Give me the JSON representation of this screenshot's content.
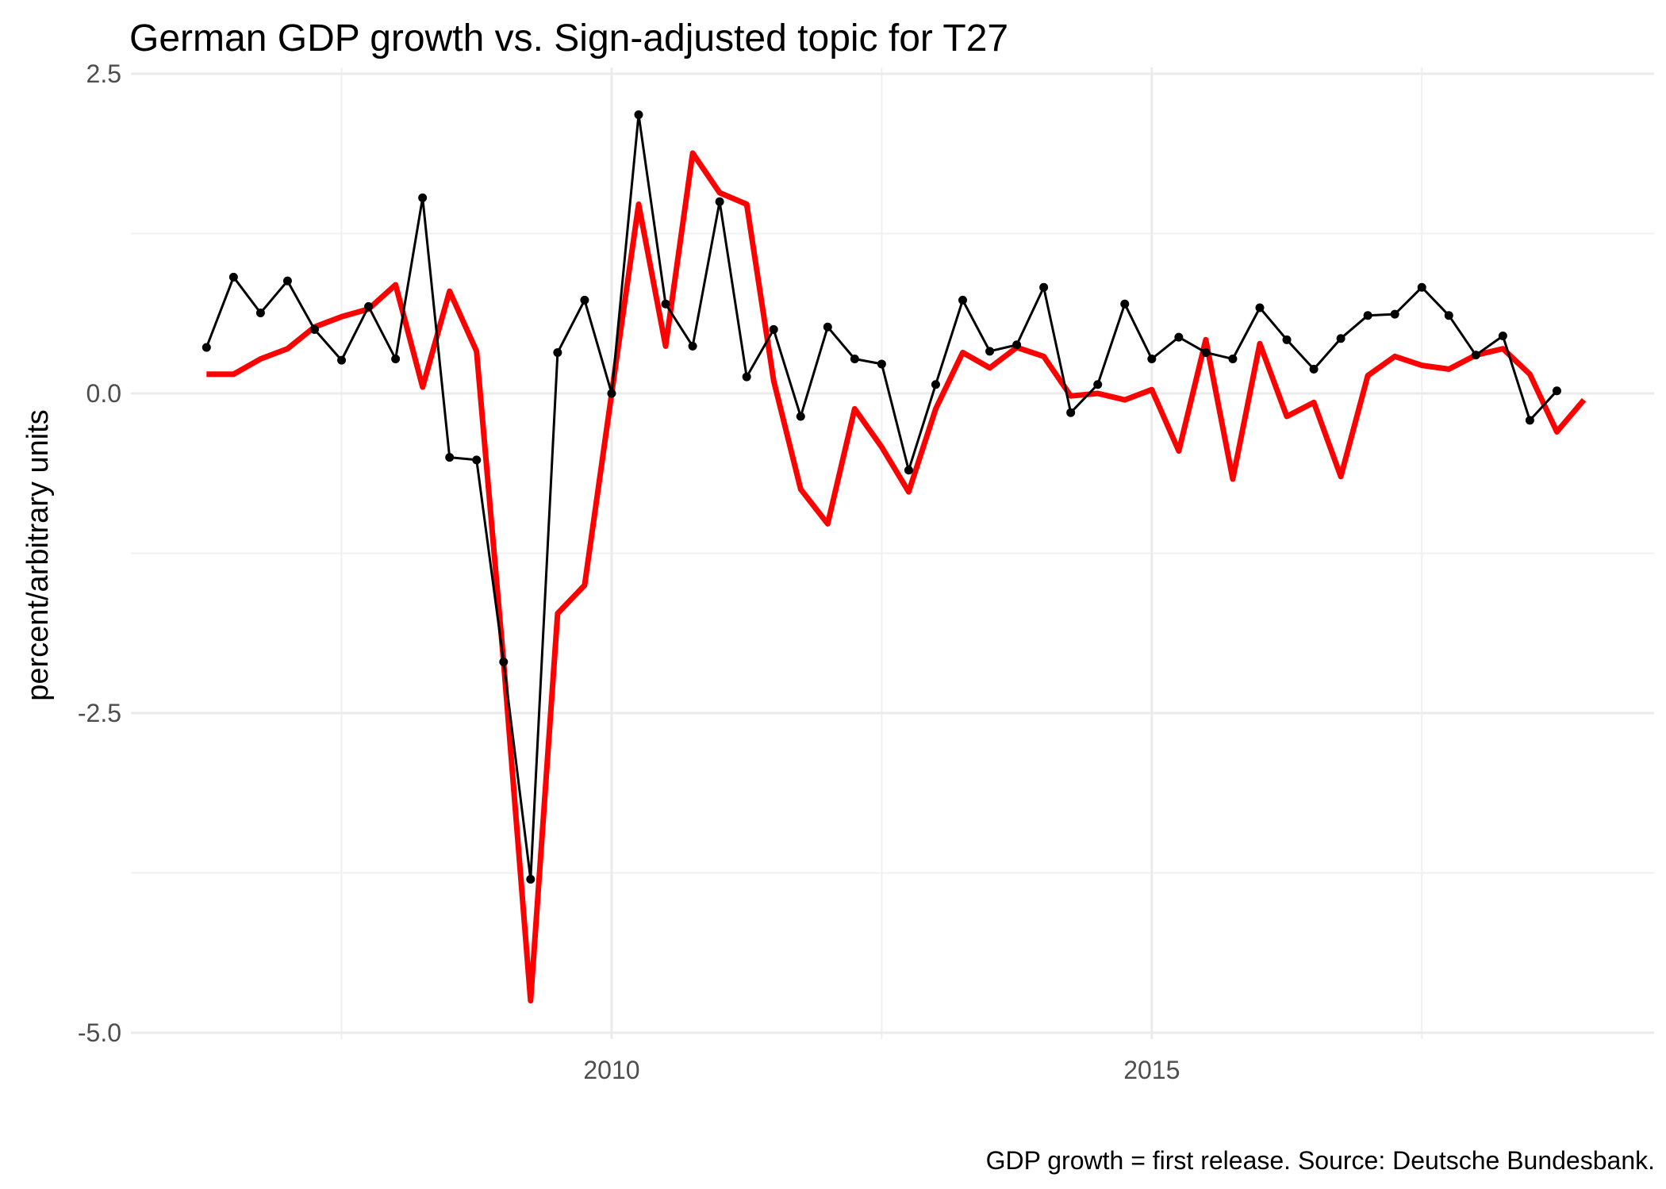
{
  "chart_data": {
    "type": "line",
    "title": "German GDP growth vs. Sign-adjusted topic for T27",
    "xlabel": "",
    "ylabel": "percent/arbitrary units",
    "caption": "GDP growth = first release. Source: Deutsche Bundesbank.",
    "xlim": [
      2005.55,
      2019.65
    ],
    "ylim": [
      -5.05,
      2.55
    ],
    "x_ticks": [
      {
        "value": 2010,
        "label": "2010"
      },
      {
        "value": 2015,
        "label": "2015"
      }
    ],
    "x_minor_ticks": [
      2007.5,
      2012.5,
      2017.5
    ],
    "y_ticks": [
      {
        "value": 2.5,
        "label": "2.5"
      },
      {
        "value": 0,
        "label": "0.0"
      },
      {
        "value": -2.5,
        "label": "-2.5"
      },
      {
        "value": -5,
        "label": "-5.0"
      }
    ],
    "y_minor_ticks": [
      1.25,
      -1.25,
      -3.75
    ],
    "grid": true,
    "legend": "none",
    "series": [
      {
        "color": "#ff0000",
        "style": "thick-line",
        "values": [
          [
            2006.25,
            0.15
          ],
          [
            2006.5,
            0.15
          ],
          [
            2006.75,
            0.27
          ],
          [
            2007.0,
            0.35
          ],
          [
            2007.25,
            0.52
          ],
          [
            2007.5,
            0.6
          ],
          [
            2007.75,
            0.66
          ],
          [
            2008.0,
            0.85
          ],
          [
            2008.25,
            0.05
          ],
          [
            2008.5,
            0.8
          ],
          [
            2008.75,
            0.33
          ],
          [
            2009.0,
            -2.1
          ],
          [
            2009.25,
            -4.75
          ],
          [
            2009.5,
            -1.72
          ],
          [
            2009.75,
            -1.5
          ],
          [
            2010.0,
            0.0
          ],
          [
            2010.25,
            1.48
          ],
          [
            2010.5,
            0.37
          ],
          [
            2010.75,
            1.88
          ],
          [
            2011.0,
            1.57
          ],
          [
            2011.25,
            1.48
          ],
          [
            2011.5,
            0.1
          ],
          [
            2011.75,
            -0.75
          ],
          [
            2012.0,
            -1.02
          ],
          [
            2012.25,
            -0.12
          ],
          [
            2012.5,
            -0.42
          ],
          [
            2012.75,
            -0.77
          ],
          [
            2013.0,
            -0.12
          ],
          [
            2013.25,
            0.32
          ],
          [
            2013.5,
            0.2
          ],
          [
            2013.75,
            0.36
          ],
          [
            2014.0,
            0.29
          ],
          [
            2014.25,
            -0.02
          ],
          [
            2014.5,
            0.0
          ],
          [
            2014.75,
            -0.05
          ],
          [
            2015.0,
            0.03
          ],
          [
            2015.25,
            -0.45
          ],
          [
            2015.5,
            0.42
          ],
          [
            2015.75,
            -0.67
          ],
          [
            2016.0,
            0.39
          ],
          [
            2016.25,
            -0.18
          ],
          [
            2016.5,
            -0.07
          ],
          [
            2016.75,
            -0.65
          ],
          [
            2017.0,
            0.14
          ],
          [
            2017.25,
            0.29
          ],
          [
            2017.5,
            0.22
          ],
          [
            2017.75,
            0.19
          ],
          [
            2018.0,
            0.3
          ],
          [
            2018.25,
            0.35
          ],
          [
            2018.5,
            0.15
          ],
          [
            2018.75,
            -0.3
          ],
          [
            2019.0,
            -0.05
          ]
        ]
      },
      {
        "color": "#000000",
        "style": "line-with-points",
        "values": [
          [
            2006.25,
            0.36
          ],
          [
            2006.5,
            0.91
          ],
          [
            2006.75,
            0.63
          ],
          [
            2007.0,
            0.88
          ],
          [
            2007.25,
            0.5
          ],
          [
            2007.5,
            0.26
          ],
          [
            2007.75,
            0.68
          ],
          [
            2008.0,
            0.27
          ],
          [
            2008.25,
            1.53
          ],
          [
            2008.5,
            -0.5
          ],
          [
            2008.75,
            -0.52
          ],
          [
            2009.0,
            -2.1
          ],
          [
            2009.25,
            -3.8
          ],
          [
            2009.5,
            0.32
          ],
          [
            2009.75,
            0.73
          ],
          [
            2010.0,
            0.0
          ],
          [
            2010.25,
            2.18
          ],
          [
            2010.5,
            0.7
          ],
          [
            2010.75,
            0.37
          ],
          [
            2011.0,
            1.5
          ],
          [
            2011.25,
            0.13
          ],
          [
            2011.5,
            0.5
          ],
          [
            2011.75,
            -0.18
          ],
          [
            2012.0,
            0.52
          ],
          [
            2012.25,
            0.27
          ],
          [
            2012.5,
            0.23
          ],
          [
            2012.75,
            -0.6
          ],
          [
            2013.0,
            0.07
          ],
          [
            2013.25,
            0.73
          ],
          [
            2013.5,
            0.33
          ],
          [
            2013.75,
            0.38
          ],
          [
            2014.0,
            0.83
          ],
          [
            2014.25,
            -0.15
          ],
          [
            2014.5,
            0.07
          ],
          [
            2014.75,
            0.7
          ],
          [
            2015.0,
            0.27
          ],
          [
            2015.25,
            0.44
          ],
          [
            2015.5,
            0.32
          ],
          [
            2015.75,
            0.27
          ],
          [
            2016.0,
            0.67
          ],
          [
            2016.25,
            0.42
          ],
          [
            2016.5,
            0.19
          ],
          [
            2016.75,
            0.43
          ],
          [
            2017.0,
            0.61
          ],
          [
            2017.25,
            0.62
          ],
          [
            2017.5,
            0.83
          ],
          [
            2017.75,
            0.61
          ],
          [
            2018.0,
            0.3
          ],
          [
            2018.25,
            0.45
          ],
          [
            2018.5,
            -0.21
          ],
          [
            2018.75,
            0.02
          ]
        ]
      }
    ]
  }
}
